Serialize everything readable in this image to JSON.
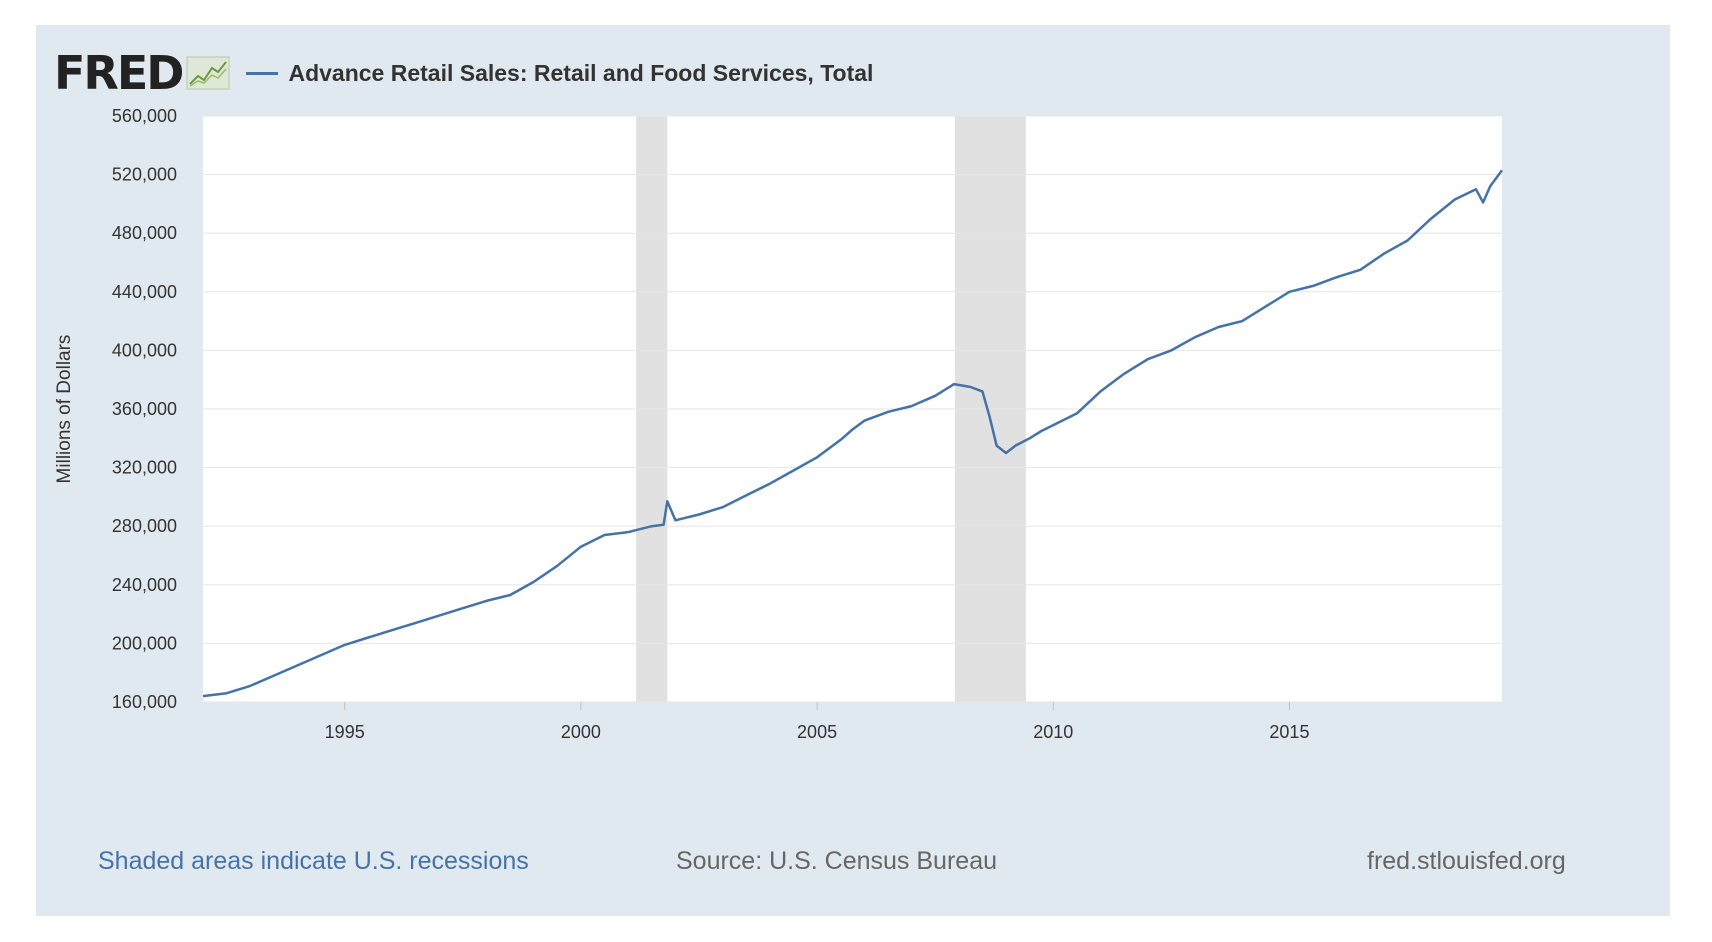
{
  "header": {
    "logo_text": "FRED",
    "series_title": "Advance Retail Sales: Retail and Food Services, Total"
  },
  "footer": {
    "recession_note": "Shaded areas indicate U.S. recessions",
    "source": "Source: U.S. Census Bureau",
    "site": "fred.stlouisfed.org"
  },
  "colors": {
    "series": "#4572a7",
    "recession": "#e1e1e1",
    "grid": "#e6e6e6",
    "background": "#e1e9f0",
    "link": "#4572a7"
  },
  "chart_data": {
    "type": "line",
    "title": "Advance Retail Sales: Retail and Food Services, Total",
    "ylabel": "Millions of Dollars",
    "xlabel": "",
    "xlim": [
      1992.0,
      2019.5
    ],
    "ylim": [
      160000,
      560000
    ],
    "yticks": [
      160000,
      200000,
      240000,
      280000,
      320000,
      360000,
      400000,
      440000,
      480000,
      520000,
      560000
    ],
    "ytick_labels": [
      "160,000",
      "200,000",
      "240,000",
      "280,000",
      "320,000",
      "360,000",
      "400,000",
      "440,000",
      "480,000",
      "520,000",
      "560,000"
    ],
    "xticks": [
      1995,
      2000,
      2005,
      2010,
      2015
    ],
    "xtick_labels": [
      "1995",
      "2000",
      "2005",
      "2010",
      "2015"
    ],
    "grid": true,
    "recessions": [
      {
        "start": 2001.17,
        "end": 2001.83
      },
      {
        "start": 2007.92,
        "end": 2009.42
      }
    ],
    "series": [
      {
        "name": "Advance Retail Sales: Retail and Food Services, Total",
        "x": [
          1992.0,
          1992.5,
          1993.0,
          1993.5,
          1994.0,
          1994.5,
          1995.0,
          1995.5,
          1996.0,
          1996.5,
          1997.0,
          1997.5,
          1998.0,
          1998.5,
          1999.0,
          1999.5,
          2000.0,
          2000.5,
          2001.0,
          2001.5,
          2001.75,
          2001.83,
          2002.0,
          2002.5,
          2003.0,
          2003.5,
          2004.0,
          2004.5,
          2005.0,
          2005.5,
          2005.75,
          2006.0,
          2006.5,
          2007.0,
          2007.5,
          2007.9,
          2008.25,
          2008.5,
          2008.65,
          2008.8,
          2009.0,
          2009.2,
          2009.5,
          2009.75,
          2010.0,
          2010.5,
          2011.0,
          2011.5,
          2012.0,
          2012.5,
          2013.0,
          2013.5,
          2014.0,
          2014.5,
          2015.0,
          2015.5,
          2016.0,
          2016.5,
          2017.0,
          2017.5,
          2018.0,
          2018.5,
          2018.95,
          2019.1,
          2019.25,
          2019.5
        ],
        "values": [
          164000,
          166000,
          171000,
          178000,
          185000,
          192000,
          199000,
          204000,
          209000,
          214000,
          219000,
          224000,
          229000,
          233000,
          242000,
          253000,
          266000,
          274000,
          276000,
          280000,
          281000,
          297000,
          284000,
          288000,
          293000,
          301000,
          309000,
          318000,
          327000,
          339000,
          346000,
          352000,
          358000,
          362000,
          369000,
          377000,
          375000,
          372000,
          355000,
          335000,
          330000,
          335000,
          340000,
          345000,
          349000,
          357000,
          372000,
          384000,
          394000,
          400000,
          409000,
          416000,
          420000,
          430000,
          440000,
          444000,
          450000,
          455000,
          466000,
          475000,
          490000,
          503000,
          510000,
          501000,
          512000,
          523000
        ]
      }
    ]
  }
}
